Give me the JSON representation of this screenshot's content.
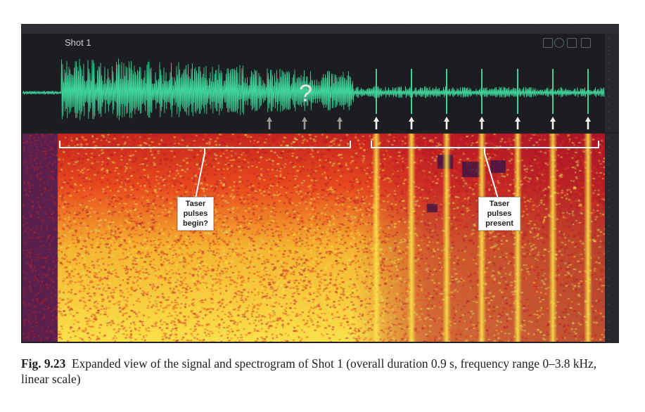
{
  "figure": {
    "waveform": {
      "title": "Shot 1",
      "question_mark": "?",
      "arrows": {
        "gray_count": 3,
        "white_count": 7
      },
      "waveform_color": "#3fd29a"
    },
    "spectrogram": {
      "callout_left": [
        "Taser",
        "pulses",
        "begin?"
      ],
      "callout_right": [
        "Taser",
        "pulses",
        "present"
      ],
      "palette": [
        "#5a1f4d",
        "#b2122b",
        "#e8491e",
        "#f5b531",
        "#fbe74a",
        "#d6e96a"
      ]
    }
  },
  "caption": {
    "label": "Fig. 9.23",
    "text": "Expanded view of the signal and spectrogram of Shot 1 (overall duration 0.9 s, frequency range 0–3.8 kHz, linear scale)"
  }
}
